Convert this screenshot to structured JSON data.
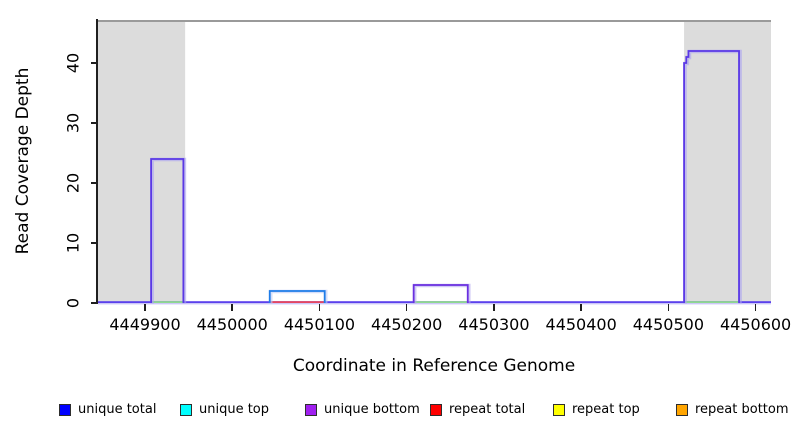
{
  "chart_data": {
    "type": "line",
    "subtype": "step-coverage",
    "title": "",
    "xlabel": "Coordinate in Reference Genome",
    "ylabel": "Read Coverage Depth",
    "xlim": [
      4449846,
      4450618
    ],
    "ylim": [
      0,
      47.2
    ],
    "grid": false,
    "legend_position": "bottom",
    "x_tick_values": [
      4449900,
      4450000,
      4450100,
      4450200,
      4450300,
      4450400,
      4450500,
      4450600
    ],
    "x_tick_labels": [
      "4449900",
      "4450000",
      "4450100",
      "4450200",
      "4450300",
      "4450400",
      "4450500",
      "4450600"
    ],
    "y_tick_values": [
      0,
      10,
      20,
      30,
      40
    ],
    "y_tick_labels": [
      "0",
      "10",
      "20",
      "30",
      "40"
    ],
    "panel_color": "#dcdcdc",
    "top_border_color": "#9a9a9a",
    "shaded_regions": [
      {
        "x0": 4449846,
        "x1": 4449946
      },
      {
        "x0": 4450518,
        "x1": 4450618
      }
    ],
    "baseline": {
      "value": 0,
      "color": "#5b41ec",
      "shadow_color": "#c3bcf7"
    },
    "peaks": [
      {
        "x0": 4449907,
        "x1": 4449944,
        "height": 24,
        "stroke": "#5a38e6",
        "halo": "#aaa2f2",
        "base_color": "#8fd98f"
      },
      {
        "x0": 4450043,
        "x1": 4450106,
        "height": 2,
        "stroke": "#1e7ce8",
        "halo": "#b9c8f5",
        "base_color": "#e6475f"
      },
      {
        "x0": 4450208,
        "x1": 4450270,
        "height": 3,
        "stroke": "#6a2fe0",
        "halo": "#b3a6f0",
        "base_color": "#8fd98f"
      },
      {
        "x0": 4450518,
        "x1": 4450581,
        "height": 42,
        "stroke": "#5a38e6",
        "halo": "#aaa2f2",
        "base_color": "#8fd98f",
        "steps": [
          [
            4450518,
            40
          ],
          [
            4450520.5,
            41
          ],
          [
            4450523,
            42
          ]
        ]
      }
    ],
    "legend": [
      {
        "label": "unique total",
        "color": "#0000ff"
      },
      {
        "label": "unique top",
        "color": "#00ffff"
      },
      {
        "label": "unique bottom",
        "color": "#a020f0"
      },
      {
        "label": "repeat total",
        "color": "#ff0000"
      },
      {
        "label": "repeat top",
        "color": "#ffff00"
      },
      {
        "label": "repeat bottom",
        "color": "#ffa500"
      }
    ]
  }
}
